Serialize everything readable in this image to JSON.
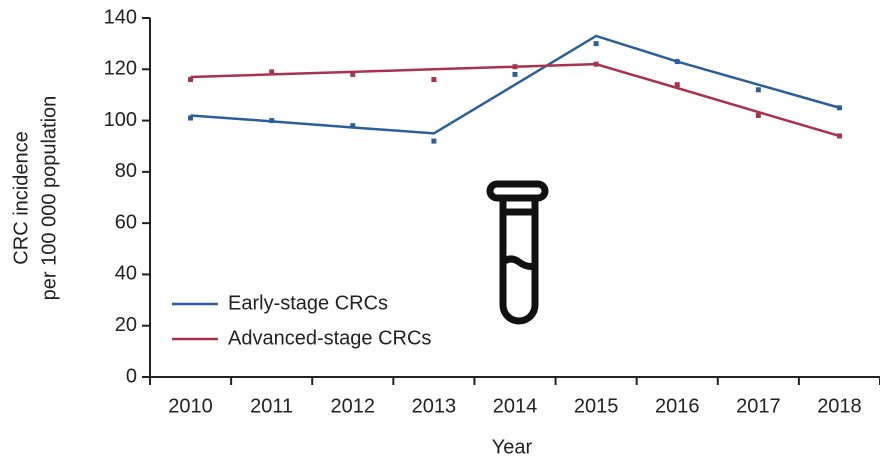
{
  "chart_data": {
    "type": "line",
    "ylabel": [
      "CRC incidence",
      "per 100 000 population"
    ],
    "xlabel": "Year",
    "categories": [
      "2010",
      "2011",
      "2012",
      "2013",
      "2014",
      "2015",
      "2016",
      "2017",
      "2018"
    ],
    "series": [
      {
        "name": "Early-stage CRCs",
        "color": "#2b5f9c",
        "values": [
          101,
          100,
          98,
          92,
          118,
          130,
          123,
          112,
          105
        ],
        "fit": [
          102,
          99.7,
          97.3,
          95,
          114,
          133,
          123,
          114,
          105
        ]
      },
      {
        "name": "Advanced-stage CRCs",
        "color": "#a8334f",
        "values": [
          116,
          119,
          118,
          116,
          121,
          122,
          114,
          102,
          94
        ],
        "fit": [
          117,
          118,
          119,
          120,
          121,
          122,
          112.7,
          103.3,
          94
        ]
      }
    ],
    "ylim": [
      0,
      140
    ],
    "yticks": [
      0,
      20,
      40,
      60,
      80,
      100,
      120,
      140
    ],
    "grid": false,
    "legend": "lower left"
  }
}
